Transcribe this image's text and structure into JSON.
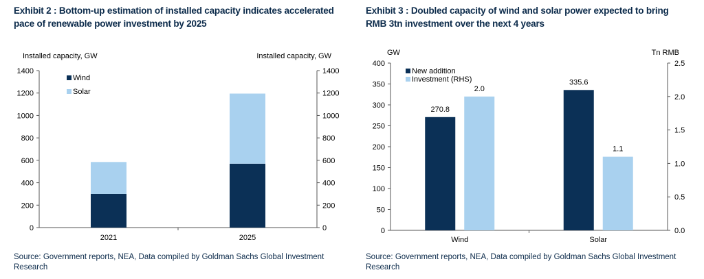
{
  "colors": {
    "navy": "#0b3056",
    "light_blue": "#a9d1ef",
    "text_blue": "#0b2a4a"
  },
  "exhibit2": {
    "title": "Exhibit 2 : Bottom-up estimation of installed capacity indicates accelerated pace of renewable power investment by 2025",
    "source": "Source: Government reports, NEA, Data compiled by Goldman Sachs Global Investment Research"
  },
  "exhibit3": {
    "title": "Exhibit 3 : Doubled capacity of wind and solar power expected to bring RMB 3tn investment over the next 4 years",
    "source": "Source: Government reports, NEA, Data compiled by Goldman Sachs Global Investment Research"
  },
  "chart_data": [
    {
      "type": "bar",
      "stacked": true,
      "title": "Exhibit 2 : Bottom-up estimation of installed capacity indicates accelerated pace of renewable power investment by 2025",
      "categories": [
        "2021",
        "2025"
      ],
      "series": [
        {
          "name": "Wind",
          "color": "#0b3056",
          "values": [
            300,
            570
          ]
        },
        {
          "name": "Solar",
          "color": "#a9d1ef",
          "values": [
            285,
            625
          ]
        }
      ],
      "ylabel_left": "Installed capacity, GW",
      "ylabel_right": "Installed capacity, GW",
      "ylim": [
        0,
        1400
      ],
      "yticks": [
        0,
        200,
        400,
        600,
        800,
        1000,
        1200,
        1400
      ],
      "legend": "top-left",
      "grid": false
    },
    {
      "type": "bar",
      "title": "Exhibit 3 : Doubled capacity of wind and solar power expected to bring RMB 3tn investment over the next 4 years",
      "categories": [
        "Wind",
        "Solar"
      ],
      "series": [
        {
          "name": "New addition",
          "axis": "left",
          "color": "#0b3056",
          "values": [
            270.8,
            335.6
          ],
          "labels": [
            "270.8",
            "335.6"
          ]
        },
        {
          "name": "Investment (RHS)",
          "axis": "right",
          "color": "#a9d1ef",
          "values": [
            2.0,
            1.1
          ],
          "labels": [
            "2.0",
            "1.1"
          ]
        }
      ],
      "ylabel_left": "GW",
      "ylabel_right": "Tn RMB",
      "ylim_left": [
        0,
        400
      ],
      "yticks_left": [
        0,
        50,
        100,
        150,
        200,
        250,
        300,
        350,
        400
      ],
      "ylim_right": [
        0,
        2.5
      ],
      "yticks_right": [
        "0.0",
        "0.5",
        "1.0",
        "1.5",
        "2.0",
        "2.5"
      ],
      "legend": "top-left",
      "grid": false
    }
  ]
}
